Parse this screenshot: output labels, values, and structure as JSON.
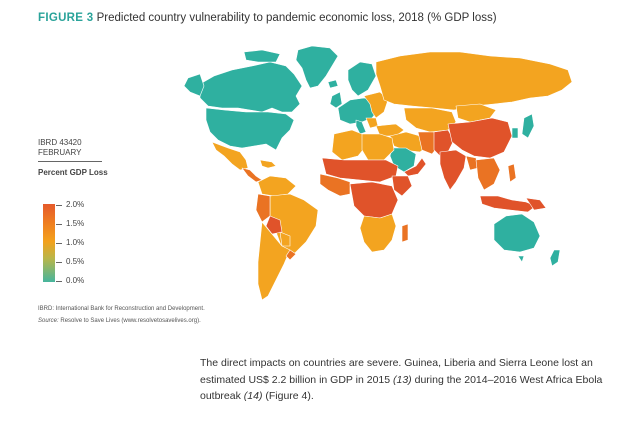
{
  "figure": {
    "label": "FIGURE 3",
    "title": "Predicted country vulnerability to pandemic economic loss, 2018 (% GDP loss)"
  },
  "map": {
    "colors": {
      "low": "#2fb0a0",
      "mid": "#f3a420",
      "high": "#ea7323",
      "very_high": "#e0532a",
      "borders": "#ffffff",
      "greenland": "#2fb0a0"
    }
  },
  "ibrd": {
    "code": "IBRD 43420",
    "month": "FEBRUARY"
  },
  "legend": {
    "title": "Percent GDP Loss",
    "ticks": [
      "2.0%",
      "1.5%",
      "1.0%",
      "0.5%",
      "0.0%"
    ]
  },
  "notes": {
    "abbrev": "IBRD: International Bank for Reconstruction and Development.",
    "source_label": "Source:",
    "source_text": "Resolve to Save Lives (www.resolvetosavelives.org)."
  },
  "body": {
    "part1": "The direct impacts on countries are severe. Guinea, Liberia and Sierra Leone lost an estimated US$ 2.2 billion in GDP in 2015 ",
    "ref1": "(13)",
    "part2": " during the 2014–2016 West Africa Ebola outbreak ",
    "ref2": "(14)",
    "part3": " (Figure 4)."
  }
}
